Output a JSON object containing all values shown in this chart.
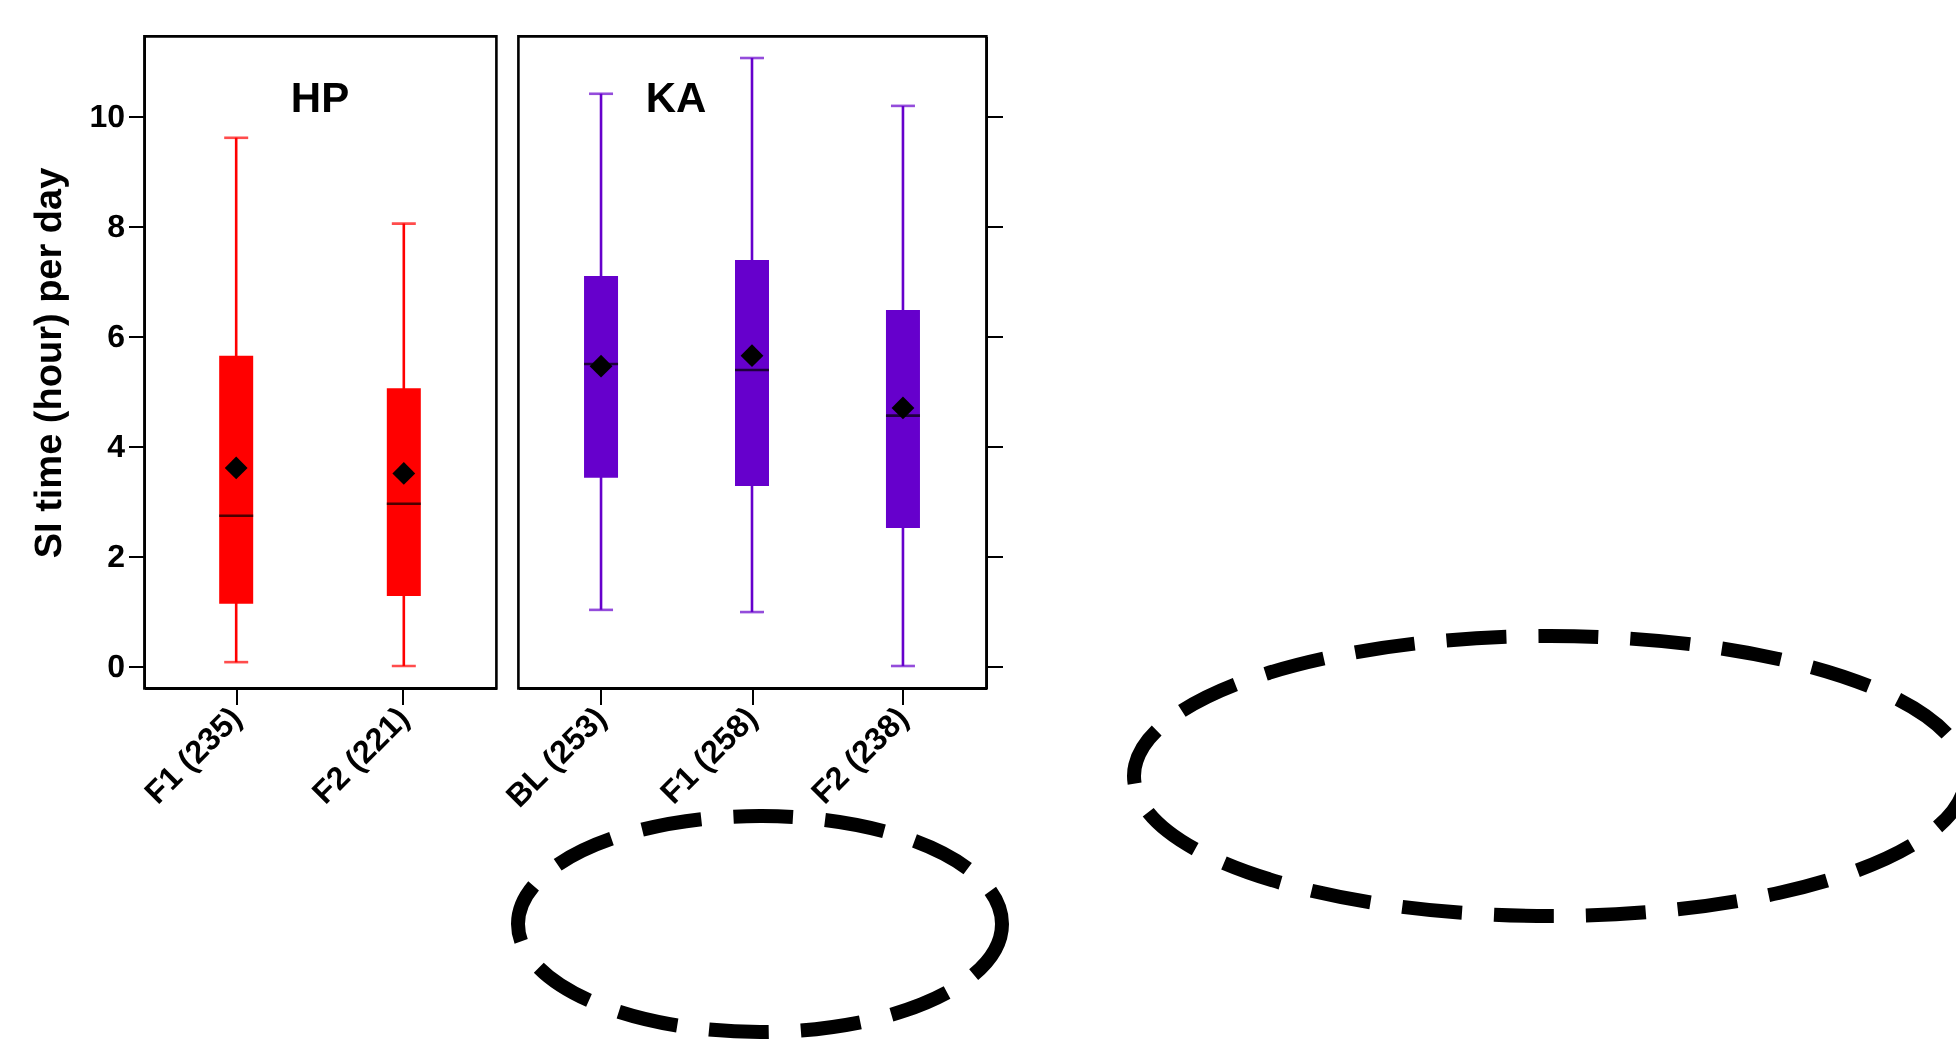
{
  "chart_data": [
    {
      "type": "box",
      "title": "HP",
      "ylabel": "SI time (hour) per day",
      "categories": [
        "F1 (235)",
        "F2 (221)"
      ],
      "ylim": [
        -0.4,
        11.45
      ],
      "yticks": [
        0,
        2,
        4,
        6,
        8,
        10
      ],
      "marker": "diamond",
      "series": [
        {
          "color": "#ff0000",
          "boxes": [
            {
              "low": 0.07,
              "q1": 1.13,
              "median": 2.73,
              "q3": 5.64,
              "high": 9.6,
              "mean": 3.6
            },
            {
              "low": 0,
              "q1": 1.27,
              "median": 2.95,
              "q3": 5.05,
              "high": 8.04,
              "mean": 3.5
            }
          ]
        }
      ]
    },
    {
      "type": "box",
      "title": "KA",
      "categories": [
        "BL (253)",
        "F1 (258)",
        "F2 (238)"
      ],
      "ylim": [
        -0.4,
        11.45
      ],
      "yticks": [
        0,
        2,
        4,
        6,
        8,
        10
      ],
      "marker": "diamond",
      "tick_labels": "x",
      "series": [
        {
          "color": "#6600cc",
          "boxes": [
            {
              "low": 1.02,
              "q1": 3.42,
              "median": 5.49,
              "q3": 7.09,
              "high": 10.4,
              "mean": 5.45
            },
            {
              "low": 0.98,
              "q1": 3.27,
              "median": 5.38,
              "q3": 7.38,
              "high": 11.05,
              "mean": 5.64
            },
            {
              "low": 0,
              "q1": 2.51,
              "median": 4.55,
              "q3": 6.47,
              "high": 10.18,
              "mean": 4.69
            }
          ]
        }
      ]
    }
  ]
}
